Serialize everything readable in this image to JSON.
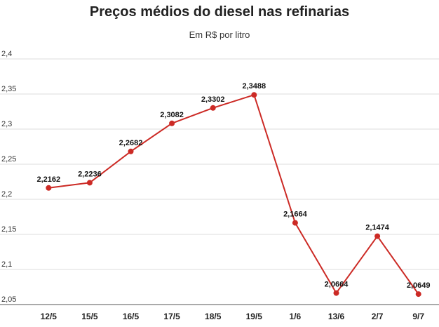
{
  "chart_data": {
    "type": "line",
    "title": "Preços médios do diesel nas refinarias",
    "subtitle": "Em R$ por litro",
    "xlabel": "",
    "ylabel": "",
    "categories": [
      "12/5",
      "15/5",
      "16/5",
      "17/5",
      "18/5",
      "19/5",
      "1/6",
      "13/6",
      "2/7",
      "9/7"
    ],
    "series": [
      {
        "values": [
          2.2162,
          2.2236,
          2.2682,
          2.3082,
          2.3302,
          2.3488,
          2.1664,
          2.0664,
          2.1474,
          2.0649
        ],
        "labels": [
          "2,2162",
          "2,2236",
          "2,2682",
          "2,3082",
          "2,3302",
          "2,3488",
          "2,1664",
          "2,0664",
          "2,1474",
          "2,0649"
        ],
        "color": "#cc2a25"
      }
    ],
    "ylim": [
      2.05,
      2.4
    ],
    "yticks": [
      2.05,
      2.1,
      2.15,
      2.2,
      2.25,
      2.3,
      2.35,
      2.4
    ],
    "ytick_labels": [
      "2,05",
      "2,1",
      "2,15",
      "2,2",
      "2,25",
      "2,3",
      "2,35",
      "2,4"
    ],
    "grid": true,
    "legend": "none"
  }
}
